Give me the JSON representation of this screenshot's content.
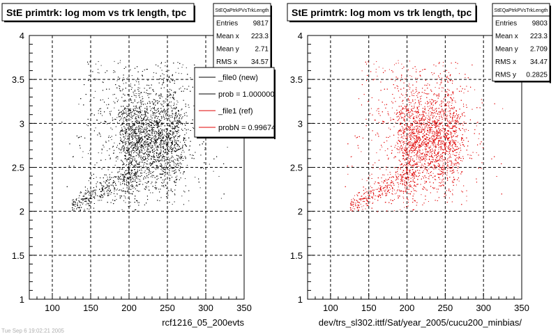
{
  "colors": {
    "data": "#000000",
    "ref": "#e00000",
    "grid": "#000000"
  },
  "left_panel": {
    "title": "StE primtrk: log mom vs trk length, tpc",
    "xlabel": "rcf1216_05_200evts",
    "stats": {
      "header": "StEQaPtrkPVsTrkLength",
      "rows": [
        {
          "label": "Entries",
          "value": "9817"
        },
        {
          "label": "Mean x",
          "value": "223.3"
        },
        {
          "label": "Mean y",
          "value": "2.71"
        },
        {
          "label": "RMS x",
          "value": "34.57"
        }
      ]
    },
    "legend": [
      {
        "label": "_file0 (new)",
        "color": "#000000"
      },
      {
        "label": "prob = 1.000000",
        "color": "#000000"
      },
      {
        "label": "_file1 (ref)",
        "color": "#e00000"
      },
      {
        "label": "probN = 0.99674",
        "color": "#e00000"
      }
    ]
  },
  "right_panel": {
    "title": "StE primtrk: log mom vs trk length, tpc",
    "xlabel": "dev/trs_sl302.ittf/Sat/year_2005/cucu200_minbias/",
    "stats": {
      "header": "StEQaPtrkPVsTrkLength",
      "rows": [
        {
          "label": "Entries",
          "value": "9803"
        },
        {
          "label": "Mean x",
          "value": "223.3"
        },
        {
          "label": "Mean y",
          "value": "2.709"
        },
        {
          "label": "RMS x",
          "value": "34.47"
        },
        {
          "label": "RMS y",
          "value": "0.2825"
        }
      ]
    }
  },
  "footer_text": "Tue Sep 6 19:02:21 2005",
  "chart_data": [
    {
      "type": "scatter",
      "title": "StE primtrk: log mom vs trk length, tpc",
      "xlabel": "rcf1216_05_200evts",
      "ylabel": "",
      "xlim": [
        70,
        350
      ],
      "ylim": [
        1,
        4
      ],
      "xticks": [
        100,
        150,
        200,
        250,
        300,
        350
      ],
      "yticks": [
        1,
        1.5,
        2,
        2.5,
        3,
        3.5,
        4
      ],
      "grid": true,
      "legend_position": "top-right",
      "series": [
        {
          "name": "_file0 (new)",
          "entries": 9817,
          "mean_x": 223.3,
          "mean_y": 2.71,
          "rms_x": 34.57
        }
      ]
    },
    {
      "type": "scatter",
      "title": "StE primtrk: log mom vs trk length, tpc",
      "xlabel": "dev/trs_sl302.ittf/Sat/year_2005/cucu200_minbias/",
      "ylabel": "",
      "xlim": [
        70,
        350
      ],
      "ylim": [
        1,
        4
      ],
      "xticks": [
        100,
        150,
        200,
        250,
        300,
        350
      ],
      "yticks": [
        1,
        1.5,
        2,
        2.5,
        3,
        3.5,
        4
      ],
      "grid": true,
      "series": [
        {
          "name": "_file1 (ref)",
          "entries": 9803,
          "mean_x": 223.3,
          "mean_y": 2.709,
          "rms_x": 34.47,
          "rms_y": 0.2825
        }
      ]
    }
  ]
}
